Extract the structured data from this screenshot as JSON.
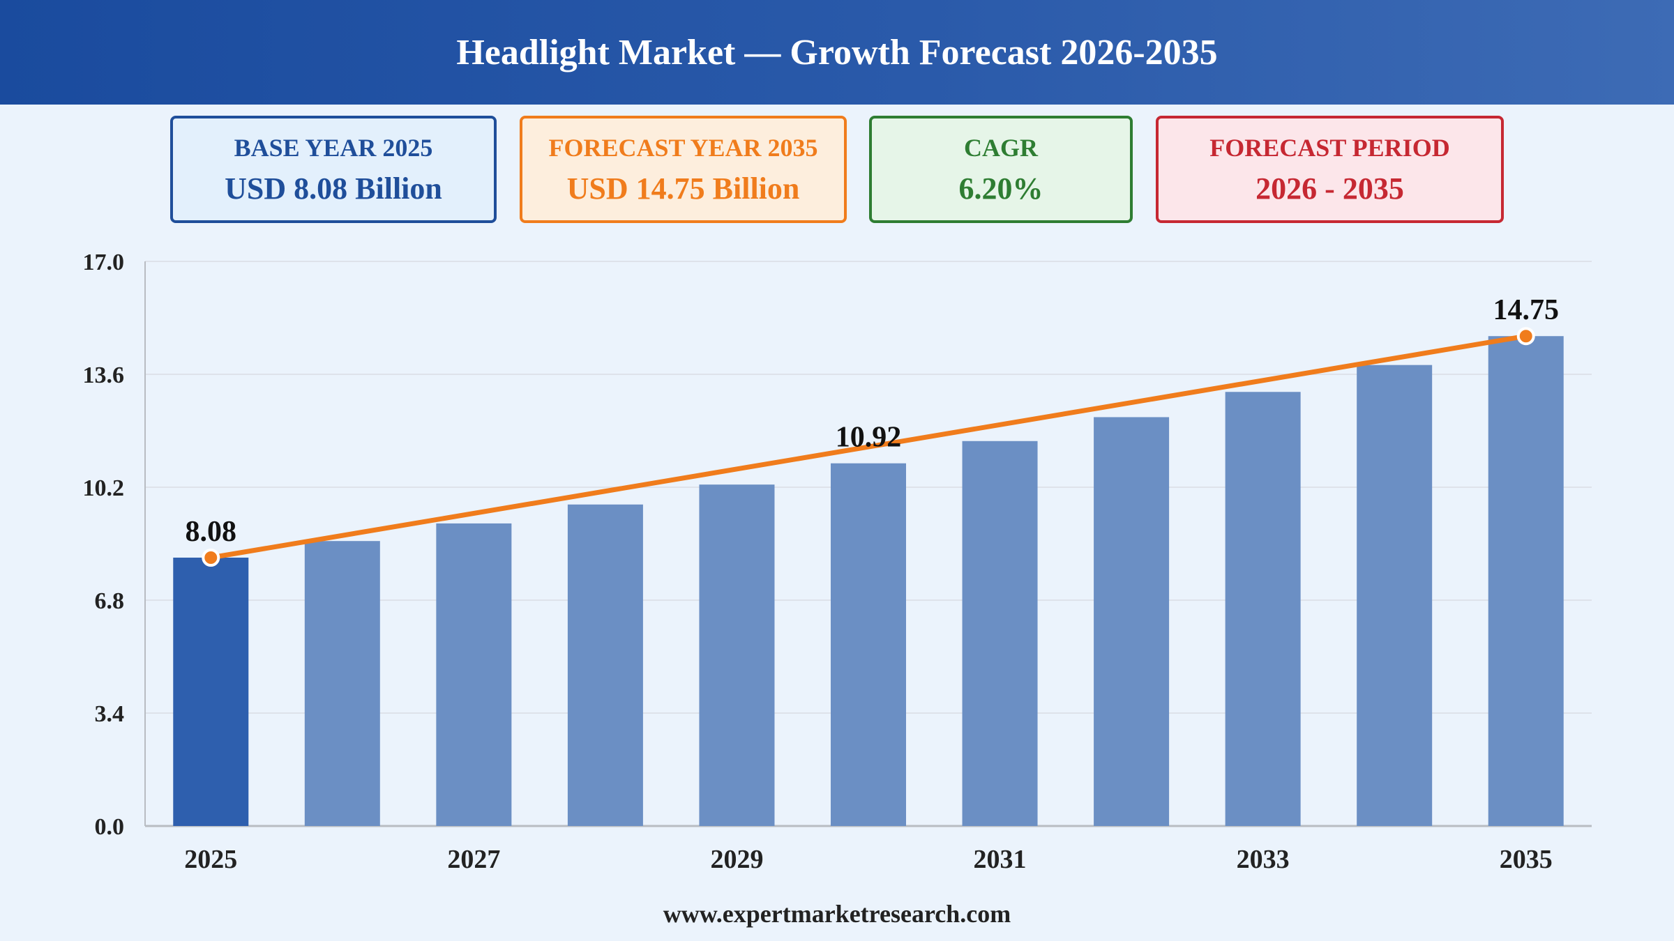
{
  "header": {
    "title": "Headlight Market — Growth Forecast 2026-2035"
  },
  "cards": {
    "base": {
      "label": "BASE YEAR 2025",
      "value": "USD 8.08 Billion"
    },
    "forecast": {
      "label": "FORECAST YEAR 2035",
      "value": "USD 14.75 Billion"
    },
    "cagr": {
      "label": "CAGR",
      "value": "6.20%"
    },
    "period": {
      "label": "FORECAST PERIOD",
      "value": "2026 - 2035"
    }
  },
  "footer": {
    "url": "www.expertmarketresearch.com"
  },
  "chart_data": {
    "type": "bar",
    "categories": [
      "2025",
      "2026",
      "2027",
      "2028",
      "2029",
      "2030",
      "2031",
      "2032",
      "2033",
      "2034",
      "2035"
    ],
    "values": [
      8.08,
      8.58,
      9.11,
      9.68,
      10.28,
      10.92,
      11.59,
      12.31,
      13.07,
      13.88,
      14.75
    ],
    "x_tick_labels": [
      "2025",
      "",
      "2027",
      "",
      "2029",
      "",
      "2031",
      "",
      "2033",
      "",
      "2035"
    ],
    "y_ticks": [
      "0.0",
      "3.4",
      "6.8",
      "10.2",
      "13.6",
      "17.0"
    ],
    "ylim": [
      0,
      17.0
    ],
    "data_labels": [
      {
        "category": "2025",
        "text": "8.08"
      },
      {
        "category": "2030",
        "text": "10.92"
      },
      {
        "category": "2035",
        "text": "14.75"
      }
    ],
    "trend_line": {
      "from": "2025",
      "to": "2035",
      "start": 8.08,
      "end": 14.75
    },
    "grid": true,
    "legend": "none",
    "colors": {
      "highlight_bar": "#2e5fae",
      "bar": "#6b8fc4",
      "trend_line": "#f07c1c",
      "grid": "#d9dde3",
      "axis": "#b8bcc2",
      "text": "#222222"
    }
  }
}
